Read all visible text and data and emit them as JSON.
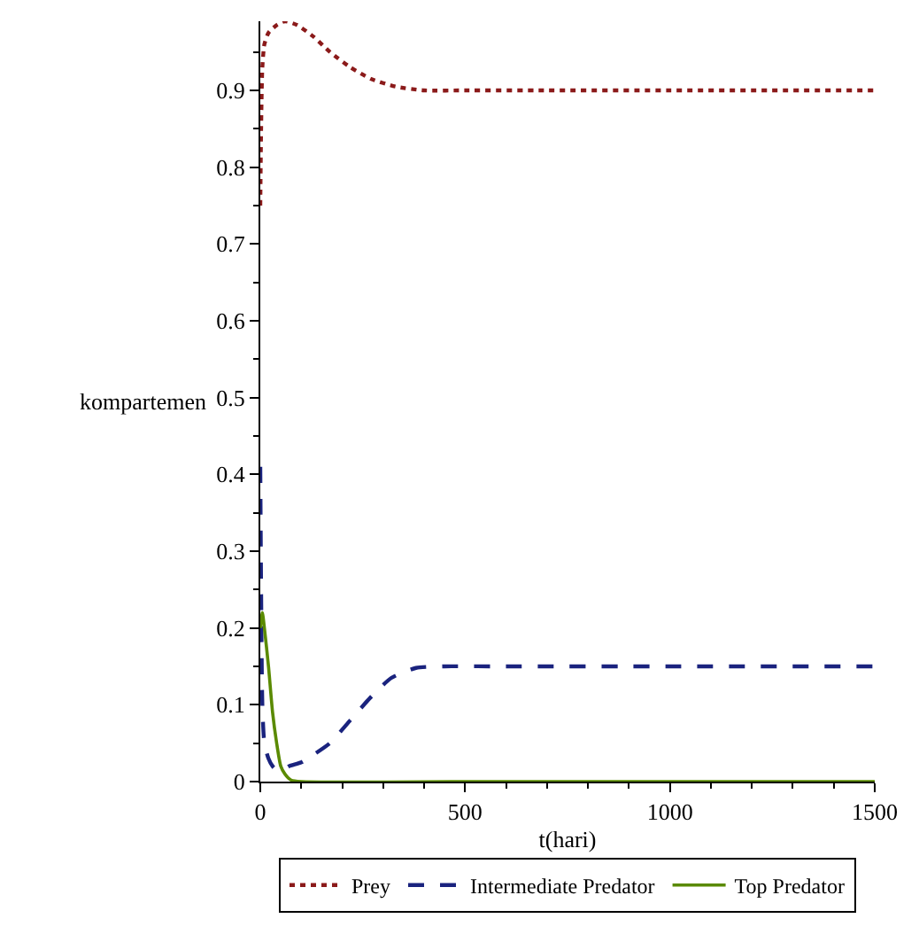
{
  "chart_data": {
    "type": "line",
    "xlabel": "t(hari)",
    "ylabel": "kompartemen",
    "xlim": [
      0,
      1500
    ],
    "ylim": [
      0,
      0.99
    ],
    "xticks": [
      0,
      {
        "value": 100,
        "label": null
      },
      {
        "value": 200,
        "label": null
      },
      {
        "value": 300,
        "label": null
      },
      {
        "value": 400,
        "label": null
      },
      500,
      {
        "value": 600,
        "label": null
      },
      {
        "value": 700,
        "label": null
      },
      {
        "value": 800,
        "label": null
      },
      {
        "value": 900,
        "label": null
      },
      1000,
      {
        "value": 1100,
        "label": null
      },
      {
        "value": 1200,
        "label": null
      },
      {
        "value": 1300,
        "label": null
      },
      {
        "value": 1400,
        "label": null
      },
      1500
    ],
    "yticks": [
      0,
      {
        "value": 0.05,
        "label": null
      },
      0.1,
      {
        "value": 0.15,
        "label": null
      },
      0.2,
      {
        "value": 0.25,
        "label": null
      },
      0.3,
      {
        "value": 0.35,
        "label": null
      },
      0.4,
      {
        "value": 0.45,
        "label": null
      },
      0.5,
      {
        "value": 0.55,
        "label": null
      },
      0.6,
      {
        "value": 0.65,
        "label": null
      },
      0.7,
      {
        "value": 0.75,
        "label": null
      },
      0.8,
      {
        "value": 0.85,
        "label": null
      },
      0.9,
      {
        "value": 0.95,
        "label": null
      }
    ],
    "legend": "bottom",
    "marker": "none",
    "series": [
      {
        "name": "Prey",
        "color": "#8b1a1a",
        "line_style": "dotted",
        "x": [
          0,
          2,
          5,
          10,
          20,
          40,
          60,
          90,
          130,
          170,
          220,
          270,
          330,
          400,
          500,
          700,
          1000,
          1500
        ],
        "values": [
          0.75,
          0.85,
          0.93,
          0.96,
          0.975,
          0.985,
          0.99,
          0.985,
          0.97,
          0.95,
          0.93,
          0.915,
          0.905,
          0.9,
          0.9,
          0.9,
          0.9,
          0.9
        ]
      },
      {
        "name": "Intermediate Predator",
        "color": "#1a237e",
        "line_style": "dashed",
        "x": [
          0,
          2,
          5,
          10,
          20,
          30,
          40,
          55,
          70,
          100,
          130,
          170,
          220,
          270,
          320,
          380,
          450,
          600,
          1000,
          1500
        ],
        "values": [
          0.41,
          0.25,
          0.1,
          0.05,
          0.03,
          0.02,
          0.015,
          0.015,
          0.02,
          0.025,
          0.035,
          0.05,
          0.08,
          0.11,
          0.135,
          0.148,
          0.15,
          0.15,
          0.15,
          0.15
        ]
      },
      {
        "name": "Top Predator",
        "color": "#5a8a00",
        "line_style": "solid",
        "x": [
          0,
          5,
          10,
          20,
          30,
          40,
          50,
          60,
          75,
          100,
          500,
          1000,
          1500
        ],
        "values": [
          0.2,
          0.22,
          0.2,
          0.15,
          0.09,
          0.05,
          0.02,
          0.01,
          0.002,
          0,
          0,
          0,
          0
        ]
      }
    ]
  }
}
